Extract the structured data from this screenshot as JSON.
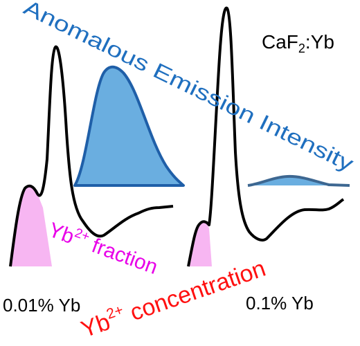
{
  "title": {
    "text": "Anomalous Emission Intensity"
  },
  "material": {
    "base": "CaF",
    "subscript": "2",
    "suffix": ":Yb"
  },
  "fraction_label": {
    "base": "Yb",
    "superscript": "2+",
    "suffix": " fraction"
  },
  "concentration_label": {
    "base": "Yb",
    "superscript": "2+",
    "suffix": " concentration"
  },
  "samples": [
    {
      "label": "0.01% Yb"
    },
    {
      "label": "0.1% Yb"
    }
  ]
}
